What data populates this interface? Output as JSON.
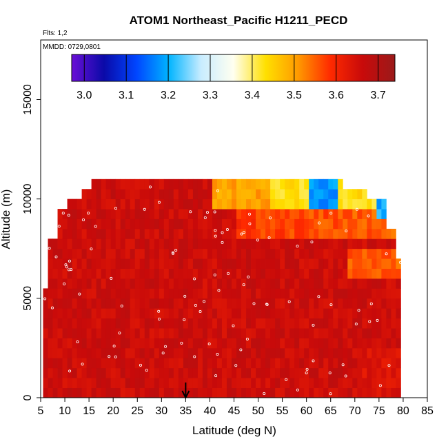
{
  "chart_data": {
    "type": "heatmap",
    "title": "ATOM1 Northeast_Pacific H1211_PECD",
    "flights_text": "Flts: 1,2",
    "dates_text": "MMDD: 0729,0801",
    "xlabel": "Latitude (deg N)",
    "ylabel": "Altitude (m)",
    "xlim": [
      5,
      85
    ],
    "ylim": [
      0,
      18000
    ],
    "x_ticks": [
      "5",
      "10",
      "15",
      "20",
      "25",
      "30",
      "35",
      "40",
      "45",
      "50",
      "55",
      "60",
      "65",
      "70",
      "75",
      "80",
      "85"
    ],
    "y_ticks": [
      "0",
      "5000",
      "10000",
      "15000"
    ],
    "colorbar": {
      "range": [
        2.97,
        3.74
      ],
      "ticks": [
        "3.0",
        "3.1",
        "3.2",
        "3.3",
        "3.4",
        "3.5",
        "3.6",
        "3.7"
      ]
    },
    "marker": {
      "latitude": 35,
      "label": "arrow"
    },
    "field_lat_range": [
      5.5,
      79.5
    ],
    "field_top_altitude_m": 10800,
    "grid": false,
    "value_summary": {
      "surface_to_4000m": 3.64,
      "mid_troposphere_north": 3.56,
      "upper_layer_high_latitude": 3.42,
      "minimum_near_9800m_62N": 3.05
    }
  },
  "colors": {
    "colormap": [
      "#6a0fd6",
      "#0a0aa8",
      "#0045ff",
      "#00b4ff",
      "#c8ecff",
      "#fffff0",
      "#ffe000",
      "#ff9a00",
      "#ff2a00",
      "#c80a0a",
      "#9b1a1a"
    ]
  }
}
